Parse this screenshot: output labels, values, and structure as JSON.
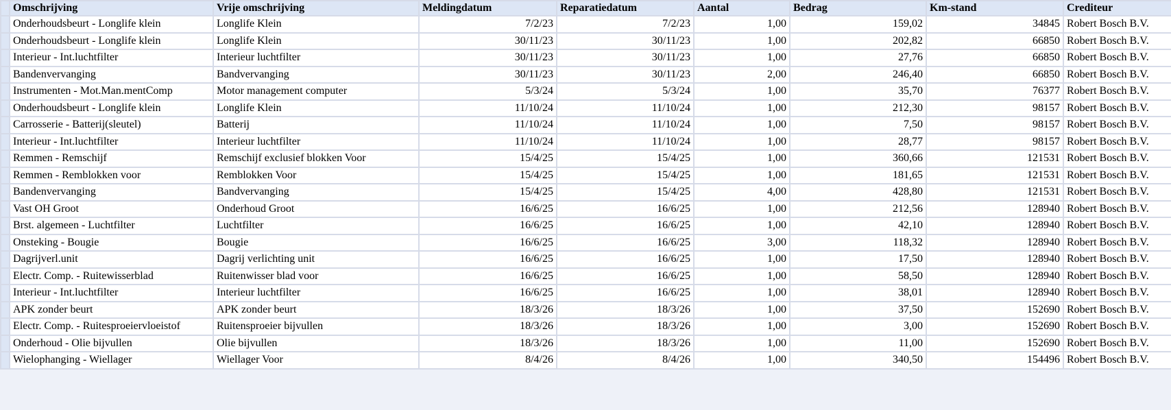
{
  "table": {
    "header": [
      "Omschrijving",
      "Vrije omschrijving",
      "Meldingdatum",
      "Reparatiedatum",
      "Aantal",
      "Bedrag",
      "Km-stand",
      "Crediteur"
    ],
    "rows": [
      [
        "Onderhoudsbeurt - Longlife klein",
        "Longlife Klein",
        "7/2/23",
        "7/2/23",
        "1,00",
        "159,02",
        "34845",
        "Robert Bosch B.V."
      ],
      [
        "Onderhoudsbeurt - Longlife klein",
        "Longlife Klein",
        "30/11/23",
        "30/11/23",
        "1,00",
        "202,82",
        "66850",
        "Robert Bosch B.V."
      ],
      [
        "Interieur - Int.luchtfilter",
        "Interieur luchtfilter",
        "30/11/23",
        "30/11/23",
        "1,00",
        "27,76",
        "66850",
        "Robert Bosch B.V."
      ],
      [
        "Bandenvervanging",
        "Bandvervanging",
        "30/11/23",
        "30/11/23",
        "2,00",
        "246,40",
        "66850",
        "Robert Bosch B.V."
      ],
      [
        "Instrumenten - Mot.Man.mentComp",
        "Motor management computer",
        "5/3/24",
        "5/3/24",
        "1,00",
        "35,70",
        "76377",
        "Robert Bosch B.V."
      ],
      [
        "Onderhoudsbeurt - Longlife klein",
        "Longlife Klein",
        "11/10/24",
        "11/10/24",
        "1,00",
        "212,30",
        "98157",
        "Robert Bosch B.V."
      ],
      [
        "Carrosserie - Batterij(sleutel)",
        "Batterij",
        "11/10/24",
        "11/10/24",
        "1,00",
        "7,50",
        "98157",
        "Robert Bosch B.V."
      ],
      [
        "Interieur - Int.luchtfilter",
        "Interieur luchtfilter",
        "11/10/24",
        "11/10/24",
        "1,00",
        "28,77",
        "98157",
        "Robert Bosch B.V."
      ],
      [
        "Remmen - Remschijf",
        "Remschijf exclusief blokken Voor",
        "15/4/25",
        "15/4/25",
        "1,00",
        "360,66",
        "121531",
        "Robert Bosch B.V."
      ],
      [
        "Remmen - Remblokken voor",
        "Remblokken Voor",
        "15/4/25",
        "15/4/25",
        "1,00",
        "181,65",
        "121531",
        "Robert Bosch B.V."
      ],
      [
        "Bandenvervanging",
        "Bandvervanging",
        "15/4/25",
        "15/4/25",
        "4,00",
        "428,80",
        "121531",
        "Robert Bosch B.V."
      ],
      [
        "Vast OH Groot",
        "Onderhoud Groot",
        "16/6/25",
        "16/6/25",
        "1,00",
        "212,56",
        "128940",
        "Robert Bosch B.V."
      ],
      [
        "Brst. algemeen - Luchtfilter",
        "Luchtfilter",
        "16/6/25",
        "16/6/25",
        "1,00",
        "42,10",
        "128940",
        "Robert Bosch B.V."
      ],
      [
        "Onsteking - Bougie",
        "Bougie",
        "16/6/25",
        "16/6/25",
        "3,00",
        "118,32",
        "128940",
        "Robert Bosch B.V."
      ],
      [
        "Dagrijverl.unit",
        "Dagrij verlichting unit",
        "16/6/25",
        "16/6/25",
        "1,00",
        "17,50",
        "128940",
        "Robert Bosch B.V."
      ],
      [
        "Electr. Comp. - Ruitewisserblad",
        "Ruitenwisser blad voor",
        "16/6/25",
        "16/6/25",
        "1,00",
        "58,50",
        "128940",
        "Robert Bosch B.V."
      ],
      [
        "Interieur - Int.luchtfilter",
        "Interieur luchtfilter",
        "16/6/25",
        "16/6/25",
        "1,00",
        "38,01",
        "128940",
        "Robert Bosch B.V."
      ],
      [
        "APK zonder beurt",
        "APK zonder beurt",
        "18/3/26",
        "18/3/26",
        "1,00",
        "37,50",
        "152690",
        "Robert Bosch B.V."
      ],
      [
        "Electr. Comp. - Ruitesproeiervloeistof",
        "Ruitensproeier bijvullen",
        "18/3/26",
        "18/3/26",
        "1,00",
        "3,00",
        "152690",
        "Robert Bosch B.V."
      ],
      [
        "Onderhoud - Olie bijvullen",
        "Olie bijvullen",
        "18/3/26",
        "18/3/26",
        "1,00",
        "11,00",
        "152690",
        "Robert Bosch B.V."
      ],
      [
        "Wielophanging - Wiellager",
        "Wiellager Voor",
        "8/4/26",
        "8/4/26",
        "1,00",
        "340,50",
        "154496",
        "Robert Bosch B.V."
      ]
    ]
  }
}
